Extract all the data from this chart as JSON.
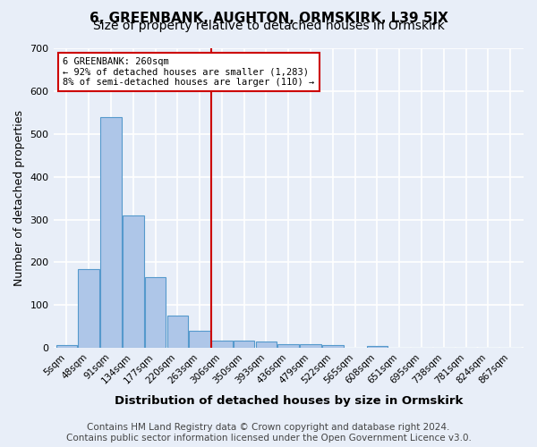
{
  "title": "6, GREENBANK, AUGHTON, ORMSKIRK, L39 5JX",
  "subtitle": "Size of property relative to detached houses in Ormskirk",
  "xlabel": "Distribution of detached houses by size in Ormskirk",
  "ylabel": "Number of detached properties",
  "footer": "Contains HM Land Registry data © Crown copyright and database right 2024.\nContains public sector information licensed under the Open Government Licence v3.0.",
  "bins": [
    "5sqm",
    "48sqm",
    "91sqm",
    "134sqm",
    "177sqm",
    "220sqm",
    "263sqm",
    "306sqm",
    "350sqm",
    "393sqm",
    "436sqm",
    "479sqm",
    "522sqm",
    "565sqm",
    "608sqm",
    "651sqm",
    "695sqm",
    "738sqm",
    "781sqm",
    "824sqm",
    "867sqm"
  ],
  "values": [
    7,
    185,
    540,
    310,
    165,
    75,
    40,
    18,
    18,
    14,
    9,
    9,
    7,
    0,
    5,
    0,
    0,
    0,
    0,
    0,
    0
  ],
  "bar_color": "#aec6e8",
  "bar_edge_color": "#5599cc",
  "vline_x_index": 6.5,
  "vline_color": "#cc0000",
  "annotation_text": "6 GREENBANK: 260sqm\n← 92% of detached houses are smaller (1,283)\n8% of semi-detached houses are larger (110) →",
  "annotation_box_color": "#ffffff",
  "annotation_box_edge": "#cc0000",
  "ylim": [
    0,
    700
  ],
  "yticks": [
    0,
    100,
    200,
    300,
    400,
    500,
    600,
    700
  ],
  "background_color": "#e8eef8",
  "grid_color": "#ffffff",
  "title_fontsize": 11,
  "subtitle_fontsize": 10,
  "axis_fontsize": 9,
  "tick_fontsize": 7.5,
  "footer_fontsize": 7.5
}
